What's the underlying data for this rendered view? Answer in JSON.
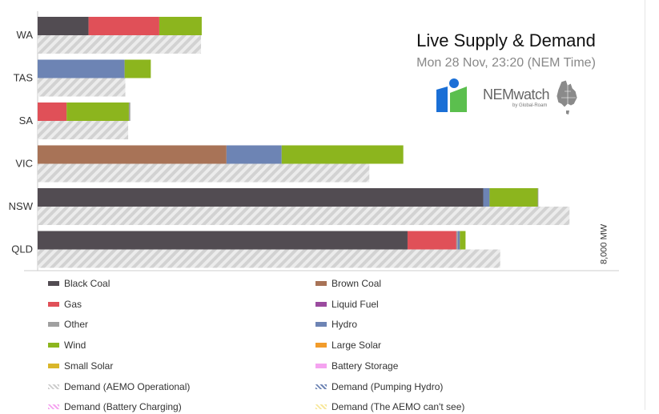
{
  "title": "Live Supply & Demand",
  "subtitle": "Mon 28 Nov, 23:20 (NEM Time)",
  "brand": {
    "name": "NEMwatch",
    "tagline": "by Global-Roam"
  },
  "chart_data": {
    "type": "bar",
    "orientation": "horizontal-stacked",
    "unit": "MW",
    "x_marker": {
      "value": 8000,
      "label": "8,000 MW"
    },
    "xlim": [
      0,
      8300
    ],
    "categories": [
      "WA",
      "TAS",
      "SA",
      "VIC",
      "NSW",
      "QLD"
    ],
    "fuels": [
      "Black Coal",
      "Brown Coal",
      "Gas",
      "Liquid Fuel",
      "Other",
      "Hydro",
      "Wind",
      "Large Solar",
      "Small Solar",
      "Battery Storage"
    ],
    "colors": {
      "Black Coal": "#524c52",
      "Brown Coal": "#a87357",
      "Gas": "#e05058",
      "Liquid Fuel": "#9b4b9f",
      "Other": "#a0a0a0",
      "Hydro": "#6d84b4",
      "Wind": "#8cb51e",
      "Large Solar": "#f29c2b",
      "Small Solar": "#d9b62a",
      "Battery Storage": "#f5a3f0"
    },
    "supply": [
      {
        "category": "WA",
        "segments": [
          {
            "fuel": "Black Coal",
            "value": 720
          },
          {
            "fuel": "Gas",
            "value": 1000
          },
          {
            "fuel": "Wind",
            "value": 600
          }
        ]
      },
      {
        "category": "TAS",
        "segments": [
          {
            "fuel": "Hydro",
            "value": 1230
          },
          {
            "fuel": "Wind",
            "value": 370
          }
        ]
      },
      {
        "category": "SA",
        "segments": [
          {
            "fuel": "Gas",
            "value": 410
          },
          {
            "fuel": "Wind",
            "value": 880
          },
          {
            "fuel": "Other",
            "value": 20
          }
        ]
      },
      {
        "category": "VIC",
        "segments": [
          {
            "fuel": "Brown Coal",
            "value": 2670
          },
          {
            "fuel": "Hydro",
            "value": 780
          },
          {
            "fuel": "Wind",
            "value": 1720
          }
        ]
      },
      {
        "category": "NSW",
        "segments": [
          {
            "fuel": "Black Coal",
            "value": 6300
          },
          {
            "fuel": "Hydro",
            "value": 90
          },
          {
            "fuel": "Wind",
            "value": 680
          },
          {
            "fuel": "Other",
            "value": 10
          }
        ]
      },
      {
        "category": "QLD",
        "segments": [
          {
            "fuel": "Black Coal",
            "value": 5230
          },
          {
            "fuel": "Gas",
            "value": 690
          },
          {
            "fuel": "Other",
            "value": 20
          },
          {
            "fuel": "Hydro",
            "value": 30
          },
          {
            "fuel": "Wind",
            "value": 80
          }
        ]
      }
    ],
    "demand": [
      {
        "category": "WA",
        "value": 2310
      },
      {
        "category": "TAS",
        "value": 1240
      },
      {
        "category": "SA",
        "value": 1280
      },
      {
        "category": "VIC",
        "value": 4690
      },
      {
        "category": "NSW",
        "value": 7520
      },
      {
        "category": "QLD",
        "value": 6540
      }
    ],
    "legend": [
      {
        "label": "Black Coal",
        "style": "solid",
        "color": "#524c52"
      },
      {
        "label": "Brown Coal",
        "style": "solid",
        "color": "#a87357"
      },
      {
        "label": "Gas",
        "style": "solid",
        "color": "#e05058"
      },
      {
        "label": "Liquid Fuel",
        "style": "solid",
        "color": "#9b4b9f"
      },
      {
        "label": "Other",
        "style": "solid",
        "color": "#a0a0a0"
      },
      {
        "label": "Hydro",
        "style": "solid",
        "color": "#6d84b4"
      },
      {
        "label": "Wind",
        "style": "solid",
        "color": "#8cb51e"
      },
      {
        "label": "Large Solar",
        "style": "solid",
        "color": "#f29c2b"
      },
      {
        "label": "Small Solar",
        "style": "solid",
        "color": "#d9b62a"
      },
      {
        "label": "Battery Storage",
        "style": "solid",
        "color": "#f5a3f0"
      },
      {
        "label": "Demand (AEMO Operational)",
        "style": "hatch",
        "color": "#cccccc"
      },
      {
        "label": "Demand (Pumping Hydro)",
        "style": "hatch",
        "color": "#6d84b4"
      },
      {
        "label": "Demand (Battery Charging)",
        "style": "hatch",
        "color": "#f5a3f0"
      },
      {
        "label": "Demand (The AEMO can't see)",
        "style": "hatch",
        "color": "#f7e79a"
      }
    ]
  }
}
